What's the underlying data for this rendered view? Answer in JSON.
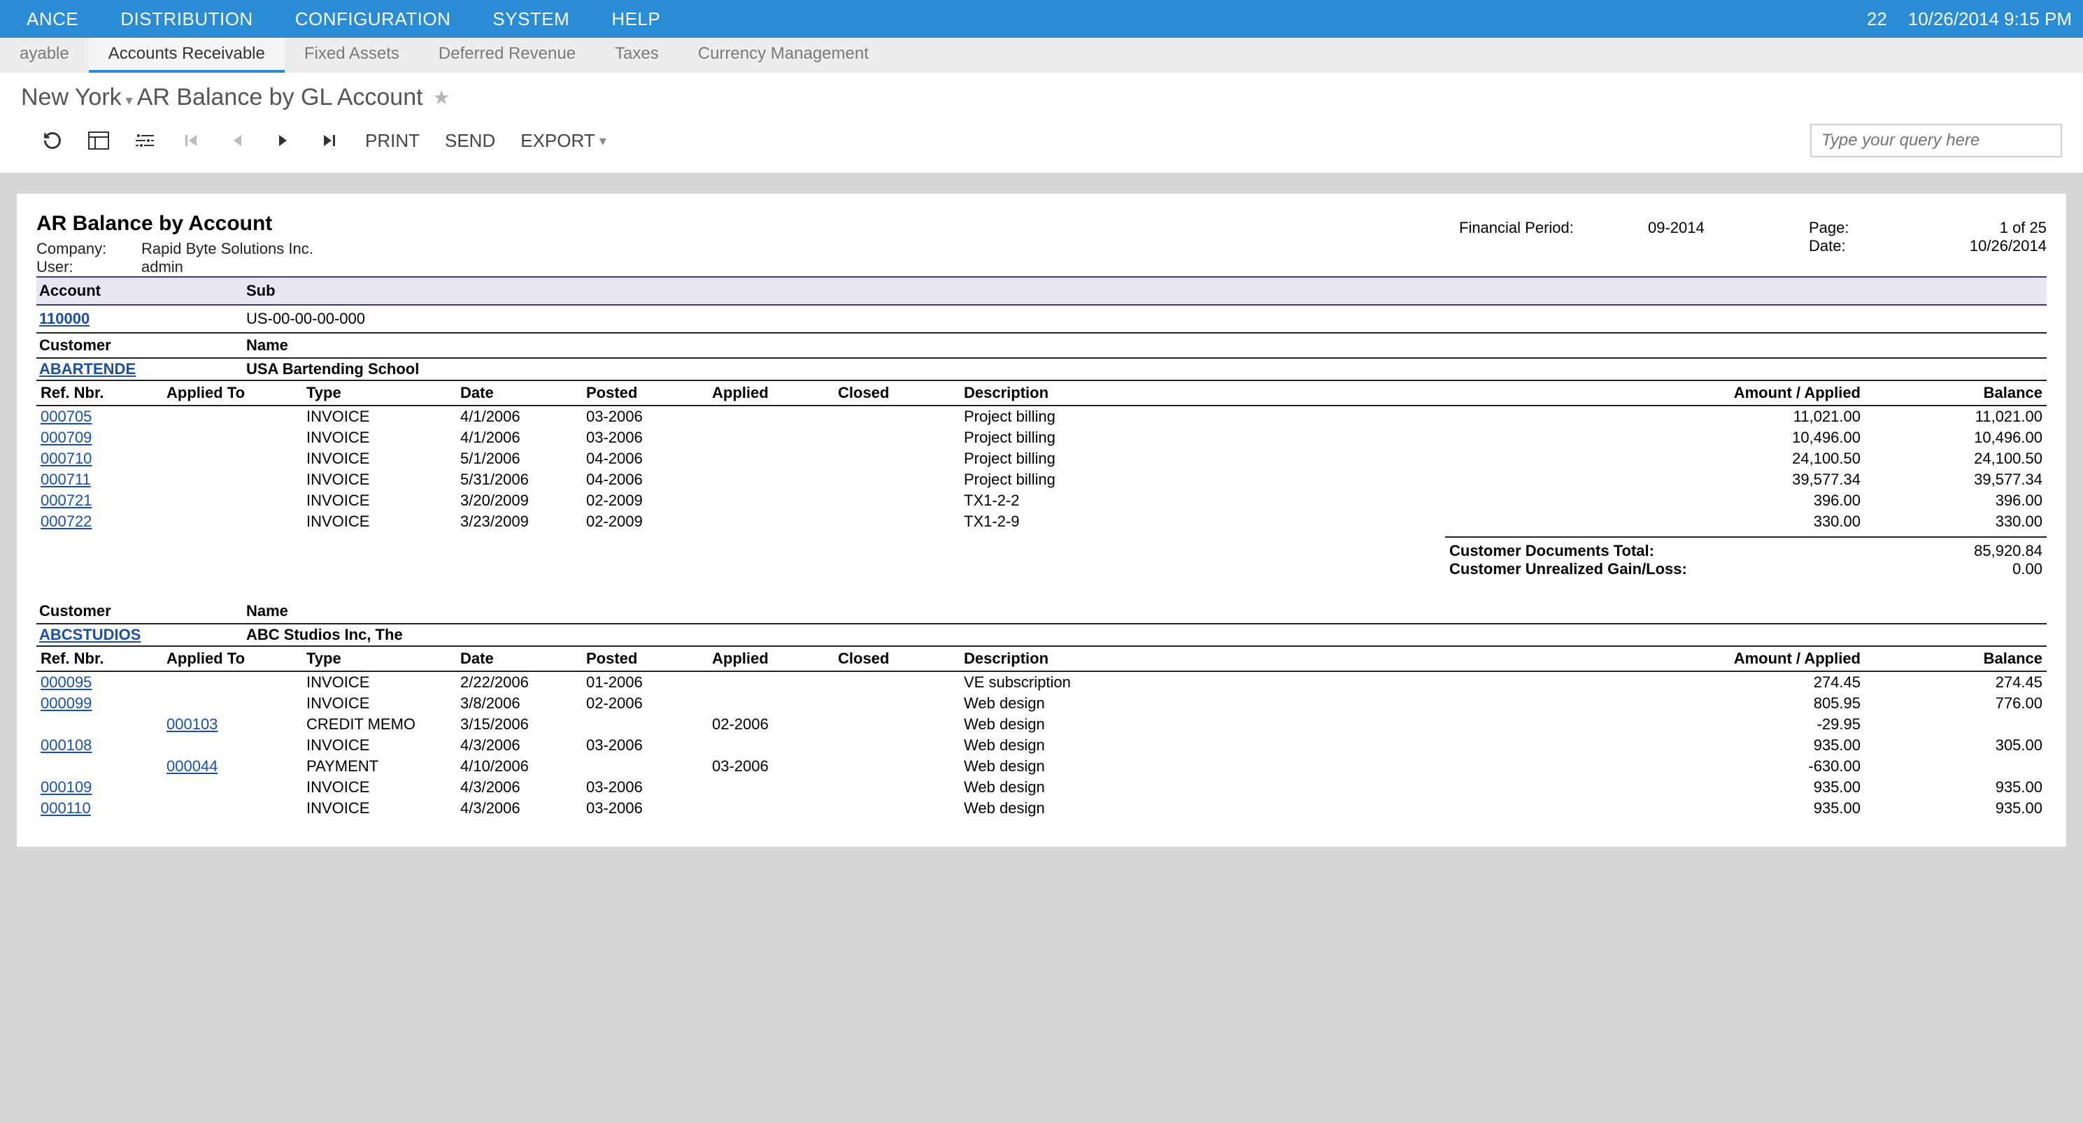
{
  "topmenu": {
    "items": [
      "ANCE",
      "DISTRIBUTION",
      "CONFIGURATION",
      "SYSTEM",
      "HELP"
    ],
    "notif": "22",
    "datetime": "10/26/2014 9:15 PM"
  },
  "subtabs": {
    "items": [
      "ayable",
      "Accounts Receivable",
      "Fixed Assets",
      "Deferred Revenue",
      "Taxes",
      "Currency Management"
    ],
    "active": 1
  },
  "breadcrumb": {
    "entity": "New York",
    "title": "AR Balance by GL Account"
  },
  "toolbar": {
    "print": "PRINT",
    "send": "SEND",
    "export": "EXPORT",
    "query_placeholder": "Type your query here"
  },
  "report": {
    "title": "AR Balance by Account",
    "company_lbl": "Company:",
    "company": "Rapid Byte Solutions Inc.",
    "user_lbl": "User:",
    "user": "admin",
    "finperiod_lbl": "Financial Period:",
    "finperiod": "09-2014",
    "page_lbl": "Page:",
    "page": "1 of 25",
    "date_lbl": "Date:",
    "date": "10/26/2014",
    "account_hdr": "Account",
    "sub_hdr": "Sub",
    "account": "110000",
    "sub": "US-00-00-00-000",
    "cust_hdr": "Customer",
    "name_hdr": "Name",
    "columns": {
      "ref": "Ref. Nbr.",
      "appto": "Applied To",
      "type": "Type",
      "date": "Date",
      "posted": "Posted",
      "applied": "Applied",
      "closed": "Closed",
      "desc": "Description",
      "amt": "Amount / Applied",
      "bal": "Balance"
    },
    "customers": [
      {
        "code": "ABARTENDE",
        "name": "USA Bartending School",
        "rows": [
          {
            "ref": "000705",
            "appto": "",
            "type": "INVOICE",
            "date": "4/1/2006",
            "posted": "03-2006",
            "applied": "",
            "closed": "",
            "desc": "Project billing",
            "amt": "11,021.00",
            "bal": "11,021.00"
          },
          {
            "ref": "000709",
            "appto": "",
            "type": "INVOICE",
            "date": "4/1/2006",
            "posted": "03-2006",
            "applied": "",
            "closed": "",
            "desc": "Project billing",
            "amt": "10,496.00",
            "bal": "10,496.00"
          },
          {
            "ref": "000710",
            "appto": "",
            "type": "INVOICE",
            "date": "5/1/2006",
            "posted": "04-2006",
            "applied": "",
            "closed": "",
            "desc": "Project billing",
            "amt": "24,100.50",
            "bal": "24,100.50"
          },
          {
            "ref": "000711",
            "appto": "",
            "type": "INVOICE",
            "date": "5/31/2006",
            "posted": "04-2006",
            "applied": "",
            "closed": "",
            "desc": "Project billing",
            "amt": "39,577.34",
            "bal": "39,577.34"
          },
          {
            "ref": "000721",
            "appto": "",
            "type": "INVOICE",
            "date": "3/20/2009",
            "posted": "02-2009",
            "applied": "",
            "closed": "",
            "desc": "TX1-2-2",
            "amt": "396.00",
            "bal": "396.00"
          },
          {
            "ref": "000722",
            "appto": "",
            "type": "INVOICE",
            "date": "3/23/2009",
            "posted": "02-2009",
            "applied": "",
            "closed": "",
            "desc": "TX1-2-9",
            "amt": "330.00",
            "bal": "330.00"
          }
        ],
        "totals": {
          "docs_lbl": "Customer Documents Total:",
          "docs_val": "85,920.84",
          "gain_lbl": "Customer Unrealized Gain/Loss:",
          "gain_val": "0.00"
        }
      },
      {
        "code": "ABCSTUDIOS",
        "name": "ABC Studios Inc, The",
        "rows": [
          {
            "ref": "000095",
            "appto": "",
            "type": "INVOICE",
            "date": "2/22/2006",
            "posted": "01-2006",
            "applied": "",
            "closed": "",
            "desc": "VE subscription",
            "amt": "274.45",
            "bal": "274.45"
          },
          {
            "ref": "000099",
            "appto": "",
            "type": "INVOICE",
            "date": "3/8/2006",
            "posted": "02-2006",
            "applied": "",
            "closed": "",
            "desc": "Web design",
            "amt": "805.95",
            "bal": "776.00"
          },
          {
            "ref": "",
            "appto": "000103",
            "type": "CREDIT MEMO",
            "date": "3/15/2006",
            "posted": "",
            "applied": "02-2006",
            "closed": "",
            "desc": "Web design",
            "amt": "-29.95",
            "bal": ""
          },
          {
            "ref": "000108",
            "appto": "",
            "type": "INVOICE",
            "date": "4/3/2006",
            "posted": "03-2006",
            "applied": "",
            "closed": "",
            "desc": "Web design",
            "amt": "935.00",
            "bal": "305.00"
          },
          {
            "ref": "",
            "appto": "000044",
            "type": "PAYMENT",
            "date": "4/10/2006",
            "posted": "",
            "applied": "03-2006",
            "closed": "",
            "desc": "Web design",
            "amt": "-630.00",
            "bal": ""
          },
          {
            "ref": "000109",
            "appto": "",
            "type": "INVOICE",
            "date": "4/3/2006",
            "posted": "03-2006",
            "applied": "",
            "closed": "",
            "desc": "Web design",
            "amt": "935.00",
            "bal": "935.00"
          },
          {
            "ref": "000110",
            "appto": "",
            "type": "INVOICE",
            "date": "4/3/2006",
            "posted": "03-2006",
            "applied": "",
            "closed": "",
            "desc": "Web design",
            "amt": "935.00",
            "bal": "935.00"
          }
        ]
      }
    ]
  }
}
